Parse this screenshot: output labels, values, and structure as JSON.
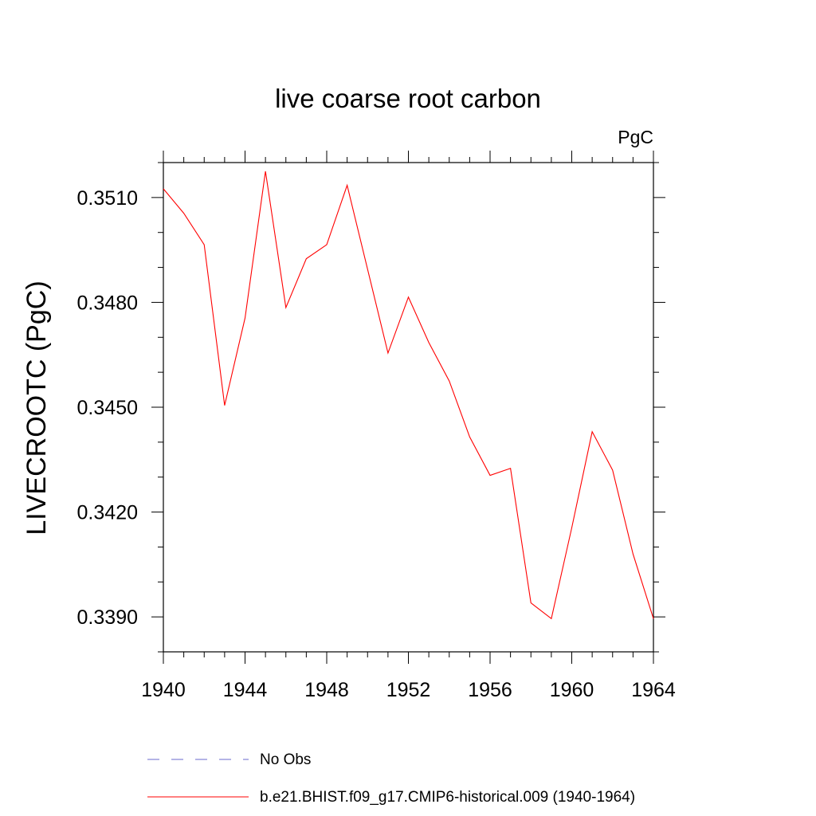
{
  "chart_data": {
    "type": "line",
    "title": "live coarse root carbon",
    "units_label": "PgC",
    "ylabel": "LIVECROOTC  (PgC)",
    "xlabel": "",
    "xlim": [
      1940,
      1964
    ],
    "ylim": [
      0.338,
      0.352
    ],
    "x_ticks": [
      1940,
      1944,
      1948,
      1952,
      1956,
      1960,
      1964
    ],
    "x_tick_labels": [
      "1940",
      "1944",
      "1948",
      "1952",
      "1956",
      "1960",
      "1964"
    ],
    "y_ticks": [
      0.339,
      0.342,
      0.345,
      0.348,
      0.351
    ],
    "y_tick_labels": [
      "0.3390",
      "0.3420",
      "0.3450",
      "0.3480",
      "0.3510"
    ],
    "grid": false,
    "legend_position": "bottom",
    "series": [
      {
        "name": "b.e21.BHIST.f09_g17.CMIP6-historical.009 (1940-1964)",
        "color": "#ff0000",
        "style": "solid",
        "x": [
          1940,
          1941,
          1942,
          1943,
          1944,
          1945,
          1946,
          1947,
          1948,
          1949,
          1950,
          1951,
          1952,
          1953,
          1954,
          1955,
          1956,
          1957,
          1958,
          1959,
          1960,
          1961,
          1962,
          1963,
          1964
        ],
        "y": [
          0.35125,
          0.35055,
          0.34965,
          0.34505,
          0.34755,
          0.35175,
          0.34785,
          0.34925,
          0.34965,
          0.35135,
          0.34895,
          0.34655,
          0.34815,
          0.34685,
          0.34575,
          0.34415,
          0.34305,
          0.34325,
          0.3394,
          0.33895,
          0.34155,
          0.3443,
          0.3432,
          0.3408,
          0.33895
        ]
      },
      {
        "name": "No Obs",
        "color": "#6a6acd",
        "style": "dashed",
        "x": [],
        "y": []
      }
    ]
  }
}
